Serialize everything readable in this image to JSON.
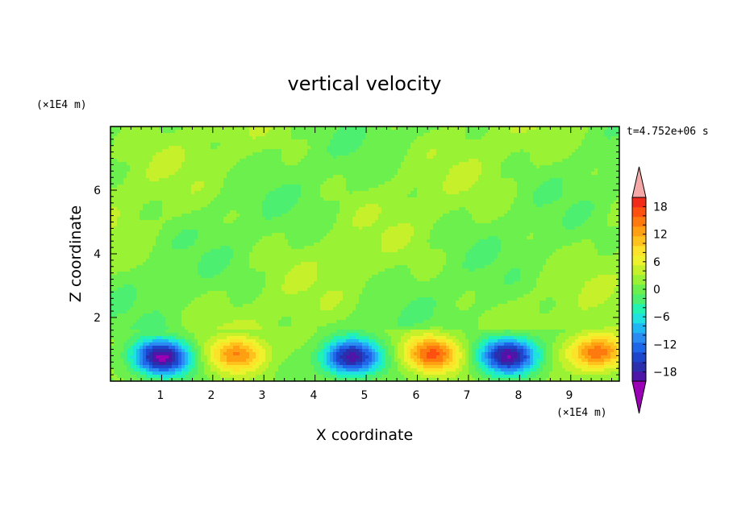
{
  "chart_data": {
    "type": "heatmap",
    "title": "vertical velocity",
    "xlabel": "X coordinate",
    "ylabel": "Z coordinate",
    "x_unit": "(×1E4 m)",
    "y_unit": "(×1E4 m)",
    "time_label": "t=4.752e+06 s",
    "xlim": [
      0,
      9.95
    ],
    "ylim": [
      0,
      8.0
    ],
    "x_ticks": [
      "1",
      "2",
      "3",
      "4",
      "5",
      "6",
      "7",
      "8",
      "9"
    ],
    "y_ticks": [
      "2",
      "4",
      "6"
    ],
    "colorbar": {
      "min": -22,
      "max": 22,
      "step": 2,
      "tick_labels": [
        "18",
        "12",
        "6",
        "0",
        "−6",
        "−12",
        "−18"
      ],
      "tick_values": [
        18,
        12,
        6,
        0,
        -6,
        -12,
        -18
      ],
      "levels_colors": [
        "#9a00b4",
        "#4e16a8",
        "#2b2fae",
        "#1e46cc",
        "#1f66e8",
        "#2a8cf2",
        "#1fb6f4",
        "#1fe1e0",
        "#23f3b0",
        "#4cef70",
        "#6cf04e",
        "#9af234",
        "#c6f02a",
        "#eef22c",
        "#fde22a",
        "#ffc21c",
        "#ffa012",
        "#ff7a0e",
        "#ff5010",
        "#f22a1a",
        "#f4a9a8"
      ]
    },
    "features": [
      {
        "x": 1.0,
        "z": 0.75,
        "w": -20
      },
      {
        "x": 2.5,
        "z": 0.85,
        "w": 12
      },
      {
        "x": 4.7,
        "z": 0.75,
        "w": -19
      },
      {
        "x": 6.3,
        "z": 0.85,
        "w": 14
      },
      {
        "x": 7.8,
        "z": 0.8,
        "w": -20
      },
      {
        "x": 9.5,
        "z": 0.9,
        "w": 14
      }
    ]
  }
}
